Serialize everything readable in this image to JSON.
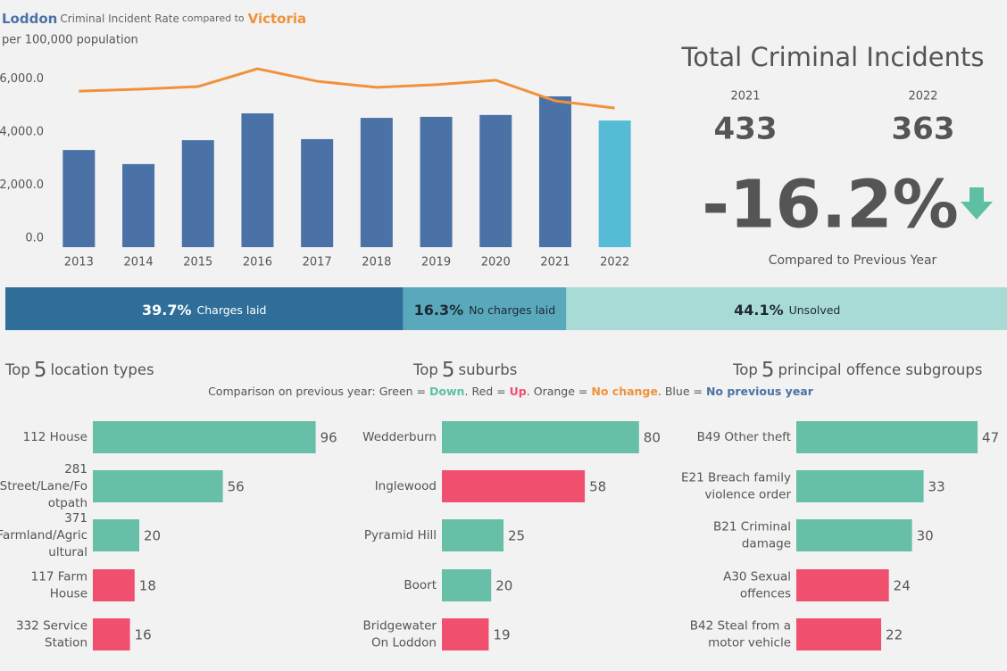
{
  "chart_data": [
    {
      "type": "bar-line",
      "title": {
        "text": "Criminal Incident Rate",
        "connector": "compared to"
      },
      "subtitle": "per 100,000 population",
      "categories": [
        "2013",
        "2014",
        "2015",
        "2016",
        "2017",
        "2018",
        "2019",
        "2020",
        "2021",
        "2022"
      ],
      "series": [
        {
          "name": "Loddon",
          "type": "bar",
          "color": "#4a72a6",
          "colors": [
            "#4a72a6",
            "#4a72a6",
            "#4a72a6",
            "#4a72a6",
            "#4a72a6",
            "#4a72a6",
            "#4a72a6",
            "#4a72a6",
            "#4a72a6",
            "#56bcd6"
          ],
          "values": [
            3660,
            3130,
            4030,
            5040,
            4070,
            4870,
            4910,
            4980,
            5680,
            4770
          ]
        },
        {
          "name": "Victoria",
          "type": "line",
          "color": "#f0923a",
          "values": [
            5880,
            5950,
            6050,
            6720,
            6250,
            6020,
            6120,
            6290,
            5510,
            5240
          ]
        }
      ],
      "ylim": [
        0,
        7000
      ],
      "yticks": [
        {
          "value": 0,
          "label": "0.0"
        },
        {
          "value": 2000,
          "label": "2,000.0"
        },
        {
          "value": 4000,
          "label": "4,000.0"
        },
        {
          "value": 6000,
          "label": "6,000.0"
        }
      ],
      "grid": false
    },
    {
      "type": "stacked-bar",
      "xlim": [
        0,
        100
      ],
      "series": [
        {
          "name": "Charges laid",
          "values": [
            39.7
          ],
          "value_labels": [
            "39.7%"
          ],
          "color": "#2e6e99",
          "text_color": "#ffffff"
        },
        {
          "name": "No charges laid",
          "values": [
            16.3
          ],
          "value_labels": [
            "16.3%"
          ],
          "color": "#5aa8bc",
          "text_color": "#1e2a33"
        },
        {
          "name": "Unsolved",
          "values": [
            44.1
          ],
          "value_labels": [
            "44.1%"
          ],
          "color": "#a8dad6",
          "text_color": "#1e2a33"
        }
      ]
    },
    {
      "type": "hbar",
      "title": {
        "prefix": "Top",
        "count": "5",
        "text": "location types"
      },
      "categories": [
        [
          "112 House"
        ],
        [
          "281",
          "Street/Lane/Fo",
          "otpath"
        ],
        [
          "371",
          "Farmland/Agric",
          "ultural"
        ],
        [
          "117 Farm",
          "House"
        ],
        [
          "332 Service",
          "Station"
        ]
      ],
      "values": [
        96,
        56,
        20,
        18,
        16
      ],
      "colors": [
        "#66bfa6",
        "#66bfa6",
        "#66bfa6",
        "#f0506e",
        "#f0506e"
      ]
    },
    {
      "type": "hbar",
      "title": {
        "prefix": "Top",
        "count": "5",
        "text": "suburbs"
      },
      "categories": [
        [
          "Wedderburn"
        ],
        [
          "Inglewood"
        ],
        [
          "Pyramid Hill"
        ],
        [
          "Boort"
        ],
        [
          "Bridgewater",
          "On Loddon"
        ]
      ],
      "values": [
        80,
        58,
        25,
        20,
        19
      ],
      "colors": [
        "#66bfa6",
        "#f0506e",
        "#66bfa6",
        "#66bfa6",
        "#f0506e"
      ]
    },
    {
      "type": "hbar",
      "title": {
        "prefix": "Top",
        "count": "5",
        "text": "principal offence subgroups"
      },
      "categories": [
        [
          "B49 Other theft"
        ],
        [
          "E21 Breach family",
          "violence order"
        ],
        [
          "B21 Criminal",
          "damage"
        ],
        [
          "A30 Sexual",
          "offences"
        ],
        [
          "B42 Steal from a",
          "motor vehicle"
        ]
      ],
      "values": [
        47,
        33,
        30,
        24,
        22
      ],
      "colors": [
        "#66bfa6",
        "#66bfa6",
        "#66bfa6",
        "#f0506e",
        "#f0506e"
      ]
    }
  ],
  "kpi": {
    "title": "Total Criminal Incidents",
    "years": [
      {
        "year": "2021",
        "value": "433"
      },
      {
        "year": "2022",
        "value": "363"
      }
    ],
    "change": "-16.2%",
    "note": "Compared to Previous Year"
  },
  "comparison_legend": {
    "intro": "Comparison on previous year:",
    "items": [
      {
        "label": "Green =",
        "status": "Down",
        "color": "#5fbfa5",
        "separator": "."
      },
      {
        "label": "Red =",
        "status": "Up",
        "color": "#f0506e",
        "separator": "."
      },
      {
        "label": "Orange =",
        "status": "No change",
        "color": "#f0923a",
        "separator": "."
      },
      {
        "label": "Blue =",
        "status": "No previous year",
        "color": "#4a72a6",
        "separator": ""
      }
    ]
  }
}
